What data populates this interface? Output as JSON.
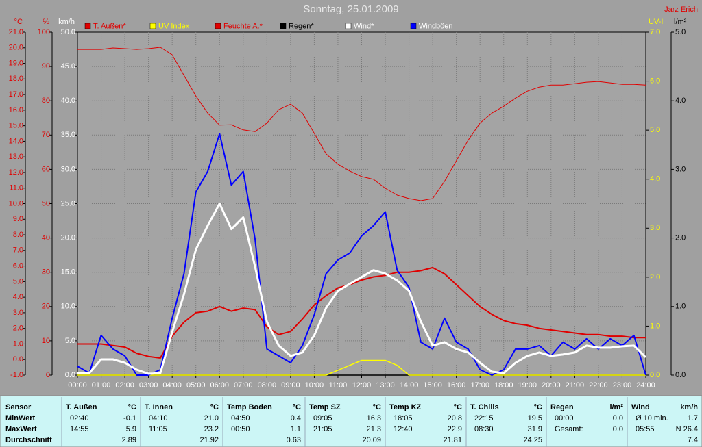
{
  "chart_data": {
    "type": "line",
    "title": "Sonntag, 25.01.2009",
    "author": "Jarz Erich",
    "grid": true,
    "x": [
      0,
      0.5,
      1,
      1.5,
      2,
      2.5,
      3,
      3.5,
      4,
      4.5,
      5,
      5.5,
      6,
      6.5,
      7,
      7.5,
      8,
      8.5,
      9,
      9.5,
      10,
      10.5,
      11,
      11.5,
      12,
      12.5,
      13,
      13.5,
      14,
      14.5,
      15,
      15.5,
      16,
      16.5,
      17,
      17.5,
      18,
      18.5,
      19,
      19.5,
      20,
      20.5,
      21,
      21.5,
      22,
      22.5,
      23,
      23.5,
      24
    ],
    "xlim": [
      0,
      24
    ],
    "xticks": [
      {
        "value": 0,
        "label": "00:00"
      },
      {
        "value": 1,
        "label": "01:00"
      },
      {
        "value": 2,
        "label": "02:00"
      },
      {
        "value": 3,
        "label": "03:00"
      },
      {
        "value": 4,
        "label": "04:00"
      },
      {
        "value": 5,
        "label": "05:00"
      },
      {
        "value": 6,
        "label": "06:00"
      },
      {
        "value": 7,
        "label": "07:00"
      },
      {
        "value": 8,
        "label": "08:00"
      },
      {
        "value": 9,
        "label": "09:00"
      },
      {
        "value": 10,
        "label": "10:00"
      },
      {
        "value": 11,
        "label": "11:00"
      },
      {
        "value": 12,
        "label": "12:00"
      },
      {
        "value": 13,
        "label": "13:00"
      },
      {
        "value": 14,
        "label": "14:00"
      },
      {
        "value": 15,
        "label": "15:00"
      },
      {
        "value": 16,
        "label": "16:00"
      },
      {
        "value": 17,
        "label": "17:00"
      },
      {
        "value": 18,
        "label": "18:00"
      },
      {
        "value": 19,
        "label": "19:00"
      },
      {
        "value": 20,
        "label": "20:00"
      },
      {
        "value": 21,
        "label": "21:00"
      },
      {
        "value": 22,
        "label": "22:00"
      },
      {
        "value": 23,
        "label": "23:00"
      },
      {
        "value": 24,
        "label": "24:00"
      }
    ],
    "y_axes": [
      {
        "label": "°C",
        "color": "#e00000",
        "ylim": [
          -1,
          21
        ],
        "yticks": [
          {
            "value": -1,
            "label": "-1.0"
          },
          {
            "value": 0,
            "label": "0.0"
          },
          {
            "value": 1,
            "label": "1.0"
          },
          {
            "value": 2,
            "label": "2.0"
          },
          {
            "value": 3,
            "label": "3.0"
          },
          {
            "value": 4,
            "label": "4.0"
          },
          {
            "value": 5,
            "label": "5.0"
          },
          {
            "value": 6,
            "label": "6.0"
          },
          {
            "value": 7,
            "label": "7.0"
          },
          {
            "value": 8,
            "label": "8.0"
          },
          {
            "value": 9,
            "label": "9.0"
          },
          {
            "value": 10,
            "label": "10.0"
          },
          {
            "value": 11,
            "label": "11.0"
          },
          {
            "value": 12,
            "label": "12.0"
          },
          {
            "value": 13,
            "label": "13.0"
          },
          {
            "value": 14,
            "label": "14.0"
          },
          {
            "value": 15,
            "label": "15.0"
          },
          {
            "value": 16,
            "label": "16.0"
          },
          {
            "value": 17,
            "label": "17.0"
          },
          {
            "value": 18,
            "label": "18.0"
          },
          {
            "value": 19,
            "label": "19.0"
          },
          {
            "value": 20,
            "label": "20.0"
          },
          {
            "value": 21,
            "label": "21.0"
          }
        ]
      },
      {
        "label": "%",
        "color": "#e00000",
        "ylim": [
          0,
          100
        ],
        "yticks": [
          0,
          10,
          20,
          30,
          40,
          50,
          60,
          70,
          80,
          90,
          100
        ]
      },
      {
        "label": "km/h",
        "color": "#ffffff",
        "ylim": [
          0,
          50
        ],
        "yticks": [
          {
            "value": 0,
            "label": "0.0"
          },
          {
            "value": 5,
            "label": "5.0"
          },
          {
            "value": 10,
            "label": "10.0"
          },
          {
            "value": 15,
            "label": "15.0"
          },
          {
            "value": 20,
            "label": "20.0"
          },
          {
            "value": 25,
            "label": "25.0"
          },
          {
            "value": 30,
            "label": "30.0"
          },
          {
            "value": 35,
            "label": "35.0"
          },
          {
            "value": 40,
            "label": "40.0"
          },
          {
            "value": 45,
            "label": "45.0"
          },
          {
            "value": 50,
            "label": "50.0"
          }
        ]
      },
      {
        "label": "UV-I",
        "color": "#ffff00",
        "ylim": [
          0,
          7
        ],
        "yticks": [
          {
            "value": 0,
            "label": "0.0"
          },
          {
            "value": 1,
            "label": "1.0"
          },
          {
            "value": 2,
            "label": "2.0"
          },
          {
            "value": 3,
            "label": "3.0"
          },
          {
            "value": 4,
            "label": "4.0"
          },
          {
            "value": 5,
            "label": "5.0"
          },
          {
            "value": 6,
            "label": "6.0"
          },
          {
            "value": 7,
            "label": "7.0"
          }
        ]
      },
      {
        "label": "l/m²",
        "color": "#000000",
        "ylim": [
          0,
          5
        ],
        "yticks": [
          {
            "value": 0,
            "label": "0.0"
          },
          {
            "value": 1,
            "label": "1.0"
          },
          {
            "value": 2,
            "label": "2.0"
          },
          {
            "value": 3,
            "label": "3.0"
          },
          {
            "value": 4,
            "label": "4.0"
          },
          {
            "value": 5,
            "label": "5.0"
          }
        ]
      }
    ],
    "series": [
      {
        "name": "T. Außen*",
        "color": "#e00000",
        "legend_color": "#e00000",
        "axis": 0,
        "values": [
          1.0,
          1.0,
          1.0,
          0.9,
          0.8,
          0.4,
          0.2,
          0.1,
          1.5,
          2.4,
          3.0,
          3.1,
          3.4,
          3.1,
          3.3,
          3.2,
          2.1,
          1.6,
          1.8,
          2.6,
          3.5,
          4.1,
          4.6,
          4.8,
          5.1,
          5.3,
          5.4,
          5.6,
          5.6,
          5.7,
          5.9,
          5.5,
          4.8,
          4.1,
          3.4,
          2.9,
          2.5,
          2.3,
          2.2,
          2.0,
          1.9,
          1.8,
          1.7,
          1.6,
          1.6,
          1.5,
          1.5,
          1.4,
          1.4
        ]
      },
      {
        "name": "UV Index",
        "color": "#ffff00",
        "legend_color": "#ffff00",
        "axis": 3,
        "values": [
          0,
          0,
          0,
          0,
          0,
          0,
          0,
          0,
          0,
          0,
          0,
          0,
          0,
          0,
          0,
          0,
          0,
          0,
          0,
          0,
          0,
          0,
          0.1,
          0.2,
          0.3,
          0.3,
          0.3,
          0.2,
          0,
          0,
          0,
          0,
          0,
          0,
          0,
          0,
          0,
          0,
          0,
          0,
          0,
          0,
          0,
          0,
          0,
          0,
          0,
          0,
          0
        ]
      },
      {
        "name": "Feuchte A.*",
        "color": "#e00000",
        "legend_color": "#e00000",
        "axis": 1,
        "values": [
          95.0,
          95.0,
          95.0,
          95.4,
          95.2,
          95.0,
          95.2,
          95.6,
          93.4,
          87.4,
          81.4,
          76.4,
          72.9,
          73.0,
          71.5,
          71.0,
          73.5,
          77.4,
          79.0,
          76.4,
          70.5,
          64.5,
          61.5,
          59.5,
          57.9,
          57.1,
          54.5,
          52.5,
          51.5,
          50.9,
          51.5,
          56.5,
          62.5,
          68.5,
          73.5,
          76.4,
          78.4,
          80.8,
          82.8,
          84.0,
          84.6,
          84.6,
          85.0,
          85.4,
          85.6,
          85.2,
          84.8,
          84.8,
          84.6
        ]
      },
      {
        "name": "Regen*",
        "color": "#000000",
        "legend_color": "#000000",
        "axis": 4,
        "values": [
          0,
          0,
          0,
          0,
          0,
          0,
          0,
          0,
          0,
          0,
          0,
          0,
          0,
          0,
          0,
          0,
          0,
          0,
          0,
          0,
          0,
          0,
          0,
          0,
          0,
          0,
          0,
          0,
          0,
          0,
          0,
          0,
          0,
          0,
          0,
          0,
          0,
          0,
          0,
          0,
          0,
          0,
          0,
          0,
          0,
          0,
          0,
          0,
          0
        ]
      },
      {
        "name": "Wind*",
        "color": "#ffffff",
        "legend_color": "#ffffff",
        "axis": 2,
        "values": [
          0.3,
          0.3,
          2.3,
          2.3,
          1.8,
          0.8,
          0.2,
          0.3,
          6.3,
          11.8,
          18.3,
          21.8,
          25.0,
          21.3,
          23.0,
          15.8,
          7.8,
          4.3,
          2.8,
          3.3,
          5.8,
          9.8,
          12.3,
          13.3,
          14.3,
          15.3,
          14.8,
          13.8,
          12.3,
          7.8,
          4.3,
          4.8,
          3.8,
          3.3,
          1.8,
          0.5,
          0.3,
          1.8,
          2.8,
          3.3,
          2.8,
          3.0,
          3.3,
          4.3,
          4.0,
          4.0,
          4.2,
          4.3,
          2.6
        ]
      },
      {
        "name": "Windböen",
        "color": "#0000ff",
        "legend_color": "#ffffff",
        "axis": 2,
        "values": [
          1.3,
          0.3,
          5.8,
          3.8,
          2.8,
          0,
          0,
          0.8,
          8.3,
          14.8,
          26.7,
          29.7,
          35.2,
          27.7,
          29.7,
          19.8,
          3.8,
          2.8,
          1.8,
          4.3,
          8.8,
          14.8,
          16.8,
          17.8,
          20.3,
          21.8,
          23.8,
          15.3,
          12.8,
          4.8,
          3.8,
          8.3,
          4.8,
          3.8,
          0.8,
          0,
          0.8,
          3.8,
          3.8,
          4.3,
          2.8,
          4.8,
          3.8,
          5.3,
          3.8,
          5.3,
          4.3,
          5.8,
          0
        ]
      }
    ]
  },
  "table": {
    "row_labels": [
      "Sensor",
      "MinWert",
      "MaxWert",
      "Durchschnitt"
    ],
    "columns": [
      {
        "name": "T. Außen",
        "unit": "°C",
        "rows": [
          [
            "02:40",
            "-0.1"
          ],
          [
            "14:55",
            "5.9"
          ],
          [
            "2.89"
          ]
        ]
      },
      {
        "name": "T. Innen",
        "unit": "°C",
        "rows": [
          [
            "04:10",
            "21.0"
          ],
          [
            "11:05",
            "23.2"
          ],
          [
            "21.92"
          ]
        ]
      },
      {
        "name": "Temp Boden",
        "unit": "°C",
        "rows": [
          [
            "04:50",
            "0.4"
          ],
          [
            "00:50",
            "1.1"
          ],
          [
            "0.63"
          ]
        ]
      },
      {
        "name": "Temp SZ",
        "unit": "°C",
        "rows": [
          [
            "09:05",
            "16.3"
          ],
          [
            "21:05",
            "21.3"
          ],
          [
            "20.09"
          ]
        ]
      },
      {
        "name": "Temp KZ",
        "unit": "°C",
        "rows": [
          [
            "18:05",
            "20.8"
          ],
          [
            "12:40",
            "22.9"
          ],
          [
            "21.81"
          ]
        ]
      },
      {
        "name": "T. Chilis",
        "unit": "°C",
        "rows": [
          [
            "22:15",
            "19.5"
          ],
          [
            "08:30",
            "31.9"
          ],
          [
            "24.25"
          ]
        ]
      },
      {
        "name": "Regen",
        "unit": "l/m²",
        "rows": [
          [
            "00:00",
            "0.0"
          ],
          [
            "Gesamt:",
            "0.0"
          ]
        ]
      },
      {
        "name": "Wind",
        "unit": "km/h",
        "rows": [
          [
            "Ø 10 min.",
            "1.7"
          ],
          [
            "05:55",
            "N 26.4"
          ],
          [
            "7.4"
          ]
        ]
      }
    ]
  }
}
